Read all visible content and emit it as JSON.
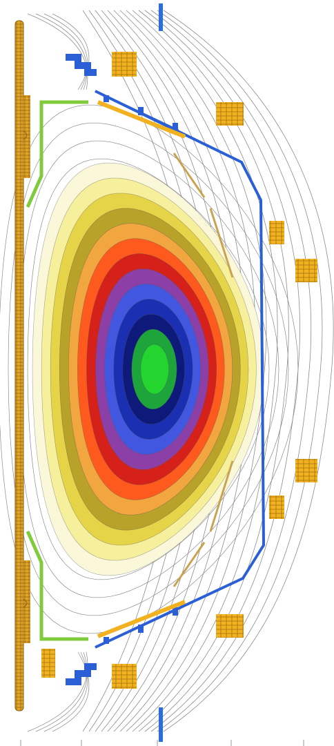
{
  "figure": {
    "kind": "tokamak-equilibrium-cross-section",
    "colors": {
      "background": "#ffffff",
      "flux_line": "#8a8a8a",
      "vessel_wall": "#2a5fd6",
      "coil": "#f2b21f",
      "coil_edge": "#a07210",
      "solenoid": "#e0a52a",
      "green_limiter": "#7fcb3b",
      "probe": "#2b6ed9"
    },
    "plasma_palette": [
      "#fbf8da",
      "#f6ef9c",
      "#e5d447",
      "#b8a22a",
      "#f2a640",
      "#ff5a1e",
      "#d6201a",
      "#8c3fa6",
      "#4257e0",
      "#1a2fb2",
      "#0e1a7a",
      "#1da43a",
      "#23d52e"
    ],
    "icons": {
      "upper-probe": "vertical-bar",
      "lower-probe": "vertical-bar",
      "central-solenoid": "segmented-column"
    }
  }
}
